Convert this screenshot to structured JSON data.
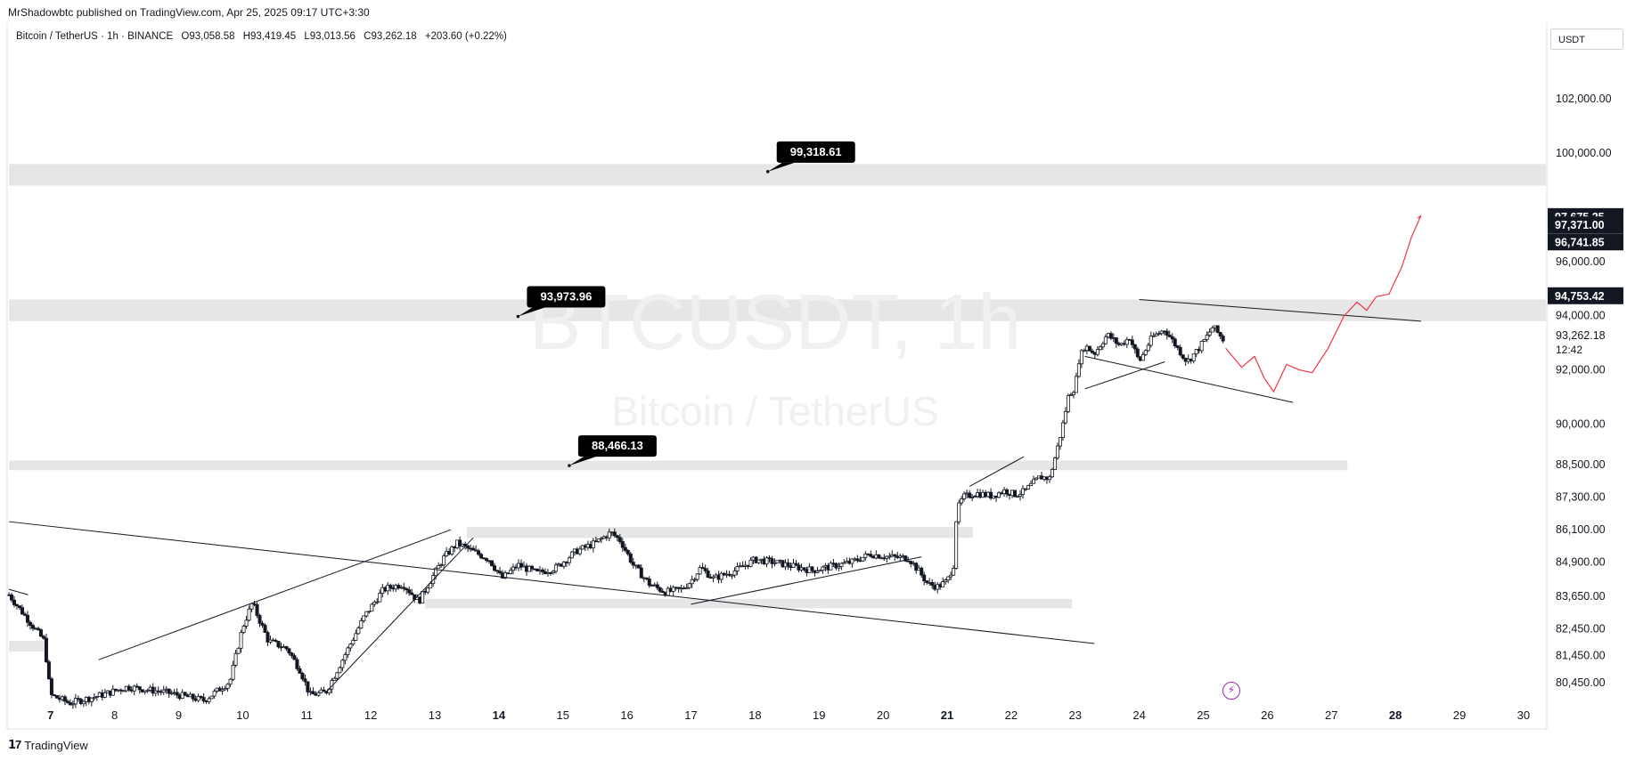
{
  "header": {
    "published": "MrShadowbtc published on TradingView.com, Apr 25, 2025 09:17 UTC+3:30",
    "symbol": "Bitcoin / TetherUS · 1h · BINANCE",
    "open": "O93,058.58",
    "high": "H93,419.45",
    "low": "L93,013.56",
    "close": "C93,262.18",
    "change": "+203.60 (+0.22%)"
  },
  "currency_label": "USDT",
  "watermark": {
    "symbol": "BTCUSDT, 1h",
    "name": "Bitcoin / TetherUS"
  },
  "footer": {
    "brand": "TradingView"
  },
  "icons": {
    "brand": "tradingview-logo-icon",
    "alert": "lightning-bolt-icon"
  },
  "colors": {
    "accent": "#131722",
    "projection": "#f23645",
    "zone": "#e6e6e6",
    "grid_text": "#131722"
  },
  "chart_data": {
    "type": "candlestick",
    "ylim": [
      79700,
      104800
    ],
    "x_range": [
      6.35,
      30.35
    ],
    "y_ticks": [
      {
        "value": 102000,
        "label": "102,000.00"
      },
      {
        "value": 100000,
        "label": "100,000.00"
      },
      {
        "value": 96000,
        "label": "96,000.00"
      },
      {
        "value": 94000,
        "label": "94,000.00"
      },
      {
        "value": 92000,
        "label": "92,000.00"
      },
      {
        "value": 90000,
        "label": "90,000.00"
      },
      {
        "value": 88500,
        "label": "88,500.00"
      },
      {
        "value": 87300,
        "label": "87,300.00"
      },
      {
        "value": 86100,
        "label": "86,100.00"
      },
      {
        "value": 84900,
        "label": "84,900.00"
      },
      {
        "value": 83650,
        "label": "83,650.00"
      },
      {
        "value": 82450,
        "label": "82,450.00"
      },
      {
        "value": 81450,
        "label": "81,450.00"
      },
      {
        "value": 80450,
        "label": "80,450.00"
      }
    ],
    "x_ticks": [
      {
        "value": 7,
        "label": "7",
        "bold": true
      },
      {
        "value": 8,
        "label": "8"
      },
      {
        "value": 9,
        "label": "9"
      },
      {
        "value": 10,
        "label": "10"
      },
      {
        "value": 11,
        "label": "11"
      },
      {
        "value": 12,
        "label": "12"
      },
      {
        "value": 13,
        "label": "13"
      },
      {
        "value": 14,
        "label": "14",
        "bold": true
      },
      {
        "value": 15,
        "label": "15"
      },
      {
        "value": 16,
        "label": "16"
      },
      {
        "value": 17,
        "label": "17"
      },
      {
        "value": 18,
        "label": "18"
      },
      {
        "value": 19,
        "label": "19"
      },
      {
        "value": 20,
        "label": "20"
      },
      {
        "value": 21,
        "label": "21",
        "bold": true
      },
      {
        "value": 22,
        "label": "22"
      },
      {
        "value": 23,
        "label": "23"
      },
      {
        "value": 24,
        "label": "24"
      },
      {
        "value": 25,
        "label": "25"
      },
      {
        "value": 26,
        "label": "26"
      },
      {
        "value": 27,
        "label": "27"
      },
      {
        "value": 28,
        "label": "28",
        "bold": true
      },
      {
        "value": 29,
        "label": "29"
      },
      {
        "value": 30,
        "label": "30"
      }
    ],
    "price_tags": [
      {
        "value": 97675.25,
        "label": "97,675.25",
        "style": "dark"
      },
      {
        "value": 97371.0,
        "label": "97,371.00",
        "style": "dark"
      },
      {
        "value": 96741.85,
        "label": "96,741.85",
        "style": "dark"
      },
      {
        "value": 94753.42,
        "label": "94,753.42",
        "style": "dark"
      },
      {
        "value": 93262.18,
        "label": "93,262.18",
        "style": "plain",
        "countdown": "12:42"
      }
    ],
    "callouts": [
      {
        "x": 18.2,
        "y": 99318.61,
        "label": "99,318.61"
      },
      {
        "x": 14.3,
        "y": 93973.96,
        "label": "93,973.96"
      },
      {
        "x": 15.1,
        "y": 88466.13,
        "label": "88,466.13"
      }
    ],
    "zones": [
      {
        "x1": 6.35,
        "x2": 30.35,
        "y1": 98800,
        "y2": 99600
      },
      {
        "x1": 6.35,
        "x2": 30.35,
        "y1": 93800,
        "y2": 94600
      },
      {
        "x1": 6.35,
        "x2": 27.25,
        "y1": 88300,
        "y2": 88650
      },
      {
        "x1": 13.5,
        "x2": 21.4,
        "y1": 85800,
        "y2": 86200
      },
      {
        "x1": 12.85,
        "x2": 22.95,
        "y1": 83200,
        "y2": 83550
      },
      {
        "x1": 6.35,
        "x2": 6.9,
        "y1": 81600,
        "y2": 82000
      }
    ],
    "trendlines": [
      {
        "x1": 6.35,
        "y1": 86400,
        "x2": 23.3,
        "y2": 81900
      },
      {
        "x1": 7.75,
        "y1": 81300,
        "x2": 13.25,
        "y2": 86100
      },
      {
        "x1": 11.3,
        "y1": 80100,
        "x2": 13.6,
        "y2": 85800
      },
      {
        "x1": 17.0,
        "y1": 83350,
        "x2": 20.6,
        "y2": 85100
      },
      {
        "x1": 21.35,
        "y1": 87700,
        "x2": 22.2,
        "y2": 88800
      },
      {
        "x1": 23.15,
        "y1": 91300,
        "x2": 24.4,
        "y2": 92300
      },
      {
        "x1": 23.15,
        "y1": 92500,
        "x2": 26.4,
        "y2": 90800
      },
      {
        "x1": 24.0,
        "y1": 94600,
        "x2": 28.4,
        "y2": 93800
      },
      {
        "x1": 6.35,
        "y1": 83900,
        "x2": 6.65,
        "y2": 83700
      }
    ],
    "projection": [
      [
        25.35,
        92800
      ],
      [
        25.6,
        92100
      ],
      [
        25.8,
        92500
      ],
      [
        25.95,
        91700
      ],
      [
        26.1,
        91200
      ],
      [
        26.3,
        92200
      ],
      [
        26.5,
        92000
      ],
      [
        26.7,
        91900
      ],
      [
        26.95,
        92800
      ],
      [
        27.2,
        94000
      ],
      [
        27.4,
        94500
      ],
      [
        27.55,
        94200
      ],
      [
        27.7,
        94700
      ],
      [
        27.9,
        94800
      ],
      [
        28.1,
        95800
      ],
      [
        28.25,
        96900
      ],
      [
        28.4,
        97700
      ],
      [
        28.35,
        97600
      ]
    ],
    "price_anchors": [
      [
        6.35,
        83700
      ],
      [
        6.9,
        82000
      ],
      [
        7.0,
        80000
      ],
      [
        7.3,
        79700
      ],
      [
        7.8,
        80000
      ],
      [
        8.2,
        80300
      ],
      [
        8.8,
        80100
      ],
      [
        9.4,
        79800
      ],
      [
        9.8,
        80500
      ],
      [
        10.0,
        82500
      ],
      [
        10.15,
        83400
      ],
      [
        10.4,
        82000
      ],
      [
        10.7,
        81700
      ],
      [
        10.9,
        80900
      ],
      [
        11.05,
        80000
      ],
      [
        11.3,
        80100
      ],
      [
        11.6,
        81500
      ],
      [
        11.9,
        82900
      ],
      [
        12.2,
        83900
      ],
      [
        12.5,
        84100
      ],
      [
        12.75,
        83450
      ],
      [
        13.0,
        84500
      ],
      [
        13.15,
        85100
      ],
      [
        13.35,
        85600
      ],
      [
        13.6,
        85300
      ],
      [
        13.85,
        85000
      ],
      [
        14.05,
        84300
      ],
      [
        14.3,
        84800
      ],
      [
        14.6,
        84500
      ],
      [
        14.9,
        84700
      ],
      [
        15.2,
        85300
      ],
      [
        15.5,
        85600
      ],
      [
        15.75,
        86000
      ],
      [
        15.9,
        85700
      ],
      [
        16.1,
        84800
      ],
      [
        16.35,
        84100
      ],
      [
        16.6,
        83800
      ],
      [
        16.85,
        83900
      ],
      [
        17.0,
        84200
      ],
      [
        17.15,
        84700
      ],
      [
        17.35,
        84300
      ],
      [
        17.7,
        84600
      ],
      [
        18.0,
        85000
      ],
      [
        18.3,
        84900
      ],
      [
        18.6,
        84750
      ],
      [
        18.9,
        84600
      ],
      [
        19.2,
        84750
      ],
      [
        19.5,
        84900
      ],
      [
        19.8,
        85200
      ],
      [
        20.1,
        85100
      ],
      [
        20.4,
        85050
      ],
      [
        20.55,
        84600
      ],
      [
        20.7,
        84100
      ],
      [
        20.85,
        84000
      ],
      [
        21.0,
        84200
      ],
      [
        21.1,
        84800
      ],
      [
        21.15,
        86800
      ],
      [
        21.25,
        87300
      ],
      [
        21.45,
        87450
      ],
      [
        21.7,
        87350
      ],
      [
        21.9,
        87550
      ],
      [
        22.05,
        87400
      ],
      [
        22.2,
        87500
      ],
      [
        22.45,
        88050
      ],
      [
        22.6,
        88000
      ],
      [
        22.7,
        88900
      ],
      [
        22.8,
        89900
      ],
      [
        22.9,
        91100
      ],
      [
        23.0,
        91350
      ],
      [
        23.05,
        92300
      ],
      [
        23.15,
        92900
      ],
      [
        23.3,
        92600
      ],
      [
        23.5,
        93300
      ],
      [
        23.7,
        92900
      ],
      [
        23.85,
        93200
      ],
      [
        24.0,
        92300
      ],
      [
        24.2,
        93200
      ],
      [
        24.4,
        93500
      ],
      [
        24.6,
        92800
      ],
      [
        24.75,
        92300
      ],
      [
        24.9,
        92700
      ],
      [
        25.05,
        93200
      ],
      [
        25.15,
        93600
      ],
      [
        25.25,
        93300
      ],
      [
        25.35,
        93000
      ]
    ]
  }
}
